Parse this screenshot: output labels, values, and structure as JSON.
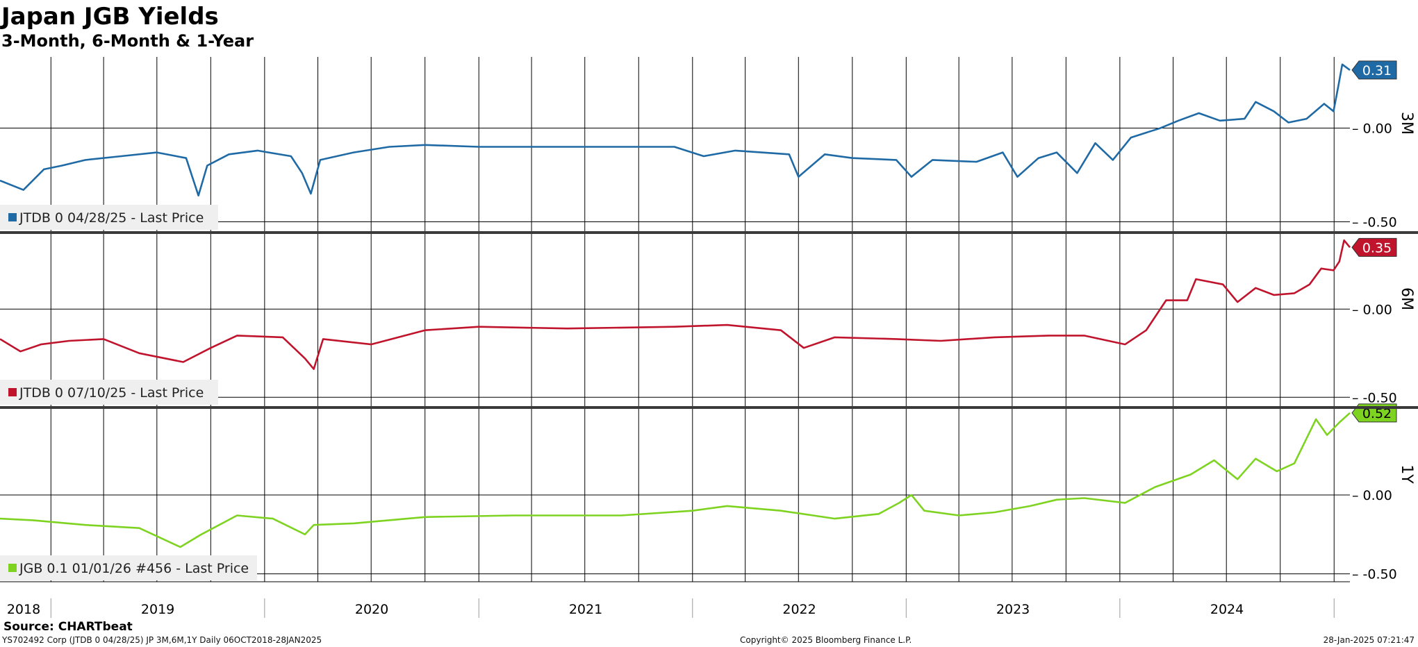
{
  "title": "Japan JGB Yields",
  "subtitle": "3-Month, 6-Month & 1-Year",
  "source": "Source: CHARTbeat",
  "footer": {
    "left": "YS702492 Corp (JTDB 0 04/28/25) JP 3M,6M,1Y  Daily 06OCT2018-28JAN2025",
    "center": "Copyright© 2025 Bloomberg Finance L.P.",
    "right": "28-Jan-2025 07:21:47"
  },
  "colors": {
    "series_3m": "#1f6aa5",
    "series_6m": "#c0132c",
    "series_1y": "#7ed321"
  },
  "chart_data": {
    "type": "line",
    "x_axis": {
      "years": [
        "2018",
        "2019",
        "2020",
        "2021",
        "2022",
        "2023",
        "2024"
      ],
      "range": [
        "2018-10-06",
        "2025-01-28"
      ],
      "grid": "vertical lines every quarter"
    },
    "panels": [
      {
        "label": "3M",
        "legend": "JTDB 0 04/28/25 - Last Price",
        "last_value": "0.31",
        "color": "#1f6aa5",
        "ylim": [
          -0.55,
          0.38
        ],
        "yticks": [
          {
            "v": 0.0,
            "label": "0.00"
          },
          {
            "v": -0.5,
            "label": "-0.50"
          }
        ],
        "points": [
          [
            "2018-10-06",
            -0.28
          ],
          [
            "2018-11-15",
            -0.33
          ],
          [
            "2018-12-20",
            -0.22
          ],
          [
            "2019-01-20",
            -0.2
          ],
          [
            "2019-03-01",
            -0.17
          ],
          [
            "2019-05-01",
            -0.15
          ],
          [
            "2019-07-01",
            -0.13
          ],
          [
            "2019-08-20",
            -0.16
          ],
          [
            "2019-09-10",
            -0.36
          ],
          [
            "2019-09-25",
            -0.2
          ],
          [
            "2019-11-01",
            -0.14
          ],
          [
            "2019-12-20",
            -0.12
          ],
          [
            "2020-02-15",
            -0.15
          ],
          [
            "2020-03-05",
            -0.24
          ],
          [
            "2020-03-20",
            -0.35
          ],
          [
            "2020-04-05",
            -0.17
          ],
          [
            "2020-06-01",
            -0.13
          ],
          [
            "2020-08-01",
            -0.1
          ],
          [
            "2020-10-01",
            -0.09
          ],
          [
            "2021-01-01",
            -0.1
          ],
          [
            "2021-06-01",
            -0.1
          ],
          [
            "2021-12-01",
            -0.1
          ],
          [
            "2022-01-20",
            -0.15
          ],
          [
            "2022-03-15",
            -0.12
          ],
          [
            "2022-06-15",
            -0.14
          ],
          [
            "2022-07-01",
            -0.26
          ],
          [
            "2022-08-15",
            -0.14
          ],
          [
            "2022-10-01",
            -0.16
          ],
          [
            "2022-12-15",
            -0.17
          ],
          [
            "2023-01-10",
            -0.26
          ],
          [
            "2023-02-15",
            -0.17
          ],
          [
            "2023-05-01",
            -0.18
          ],
          [
            "2023-06-15",
            -0.13
          ],
          [
            "2023-07-10",
            -0.26
          ],
          [
            "2023-08-15",
            -0.16
          ],
          [
            "2023-09-15",
            -0.13
          ],
          [
            "2023-10-20",
            -0.24
          ],
          [
            "2023-11-20",
            -0.08
          ],
          [
            "2023-12-20",
            -0.17
          ],
          [
            "2024-01-20",
            -0.05
          ],
          [
            "2024-03-10",
            0.0
          ],
          [
            "2024-04-10",
            0.04
          ],
          [
            "2024-05-15",
            0.08
          ],
          [
            "2024-06-20",
            0.04
          ],
          [
            "2024-08-01",
            0.05
          ],
          [
            "2024-08-20",
            0.14
          ],
          [
            "2024-09-20",
            0.09
          ],
          [
            "2024-10-15",
            0.03
          ],
          [
            "2024-11-15",
            0.05
          ],
          [
            "2024-12-15",
            0.13
          ],
          [
            "2024-12-31",
            0.09
          ],
          [
            "2025-01-08",
            0.22
          ],
          [
            "2025-01-15",
            0.34
          ],
          [
            "2025-01-28",
            0.31
          ]
        ]
      },
      {
        "label": "6M",
        "legend": "JTDB 0 07/10/25 - Last Price",
        "last_value": "0.35",
        "color": "#c0132c",
        "ylim": [
          -0.55,
          0.43
        ],
        "yticks": [
          {
            "v": 0.0,
            "label": "0.00"
          },
          {
            "v": -0.5,
            "label": "-0.50"
          }
        ],
        "points": [
          [
            "2018-10-06",
            -0.17
          ],
          [
            "2018-11-10",
            -0.24
          ],
          [
            "2018-12-15",
            -0.2
          ],
          [
            "2019-02-01",
            -0.18
          ],
          [
            "2019-04-01",
            -0.17
          ],
          [
            "2019-06-01",
            -0.25
          ],
          [
            "2019-08-15",
            -0.3
          ],
          [
            "2019-10-01",
            -0.22
          ],
          [
            "2019-11-15",
            -0.15
          ],
          [
            "2020-02-01",
            -0.16
          ],
          [
            "2020-03-10",
            -0.28
          ],
          [
            "2020-03-25",
            -0.34
          ],
          [
            "2020-04-10",
            -0.17
          ],
          [
            "2020-07-01",
            -0.2
          ],
          [
            "2020-10-01",
            -0.12
          ],
          [
            "2021-01-01",
            -0.1
          ],
          [
            "2021-06-01",
            -0.11
          ],
          [
            "2021-12-01",
            -0.1
          ],
          [
            "2022-03-01",
            -0.09
          ],
          [
            "2022-06-01",
            -0.12
          ],
          [
            "2022-07-10",
            -0.22
          ],
          [
            "2022-09-01",
            -0.16
          ],
          [
            "2022-12-15",
            -0.17
          ],
          [
            "2023-03-01",
            -0.18
          ],
          [
            "2023-06-01",
            -0.16
          ],
          [
            "2023-09-01",
            -0.15
          ],
          [
            "2023-11-01",
            -0.15
          ],
          [
            "2024-01-10",
            -0.2
          ],
          [
            "2024-02-15",
            -0.12
          ],
          [
            "2024-03-20",
            0.05
          ],
          [
            "2024-04-25",
            0.05
          ],
          [
            "2024-05-10",
            0.17
          ],
          [
            "2024-06-25",
            0.14
          ],
          [
            "2024-07-20",
            0.04
          ],
          [
            "2024-08-20",
            0.12
          ],
          [
            "2024-09-20",
            0.08
          ],
          [
            "2024-10-25",
            0.09
          ],
          [
            "2024-11-20",
            0.14
          ],
          [
            "2024-12-10",
            0.23
          ],
          [
            "2024-12-31",
            0.22
          ],
          [
            "2025-01-10",
            0.27
          ],
          [
            "2025-01-18",
            0.39
          ],
          [
            "2025-01-28",
            0.35
          ]
        ]
      },
      {
        "label": "1Y",
        "legend": "JGB 0.1 01/01/26 #456 - Last Price",
        "last_value": "0.52",
        "color": "#7ed321",
        "ylim": [
          -0.55,
          0.55
        ],
        "yticks": [
          {
            "v": 0.0,
            "label": "0.00"
          },
          {
            "v": -0.5,
            "label": "-0.50"
          }
        ],
        "points": [
          [
            "2018-10-06",
            -0.15
          ],
          [
            "2018-12-01",
            -0.16
          ],
          [
            "2019-03-01",
            -0.19
          ],
          [
            "2019-06-01",
            -0.21
          ],
          [
            "2019-08-10",
            -0.33
          ],
          [
            "2019-09-15",
            -0.25
          ],
          [
            "2019-11-15",
            -0.13
          ],
          [
            "2020-01-15",
            -0.15
          ],
          [
            "2020-03-10",
            -0.25
          ],
          [
            "2020-03-25",
            -0.19
          ],
          [
            "2020-06-01",
            -0.18
          ],
          [
            "2020-10-01",
            -0.14
          ],
          [
            "2021-03-01",
            -0.13
          ],
          [
            "2021-09-01",
            -0.13
          ],
          [
            "2022-01-01",
            -0.1
          ],
          [
            "2022-03-01",
            -0.07
          ],
          [
            "2022-06-01",
            -0.1
          ],
          [
            "2022-09-01",
            -0.15
          ],
          [
            "2022-11-15",
            -0.12
          ],
          [
            "2022-12-20",
            -0.05
          ],
          [
            "2023-01-10",
            0.0
          ],
          [
            "2023-02-01",
            -0.1
          ],
          [
            "2023-04-01",
            -0.13
          ],
          [
            "2023-06-01",
            -0.11
          ],
          [
            "2023-08-01",
            -0.07
          ],
          [
            "2023-09-15",
            -0.03
          ],
          [
            "2023-11-01",
            -0.02
          ],
          [
            "2024-01-10",
            -0.05
          ],
          [
            "2024-03-01",
            0.05
          ],
          [
            "2024-05-01",
            0.13
          ],
          [
            "2024-06-10",
            0.22
          ],
          [
            "2024-07-20",
            0.1
          ],
          [
            "2024-08-20",
            0.23
          ],
          [
            "2024-09-25",
            0.15
          ],
          [
            "2024-10-25",
            0.2
          ],
          [
            "2024-12-01",
            0.48
          ],
          [
            "2024-12-20",
            0.38
          ],
          [
            "2025-01-10",
            0.46
          ],
          [
            "2025-01-28",
            0.52
          ]
        ]
      }
    ]
  }
}
